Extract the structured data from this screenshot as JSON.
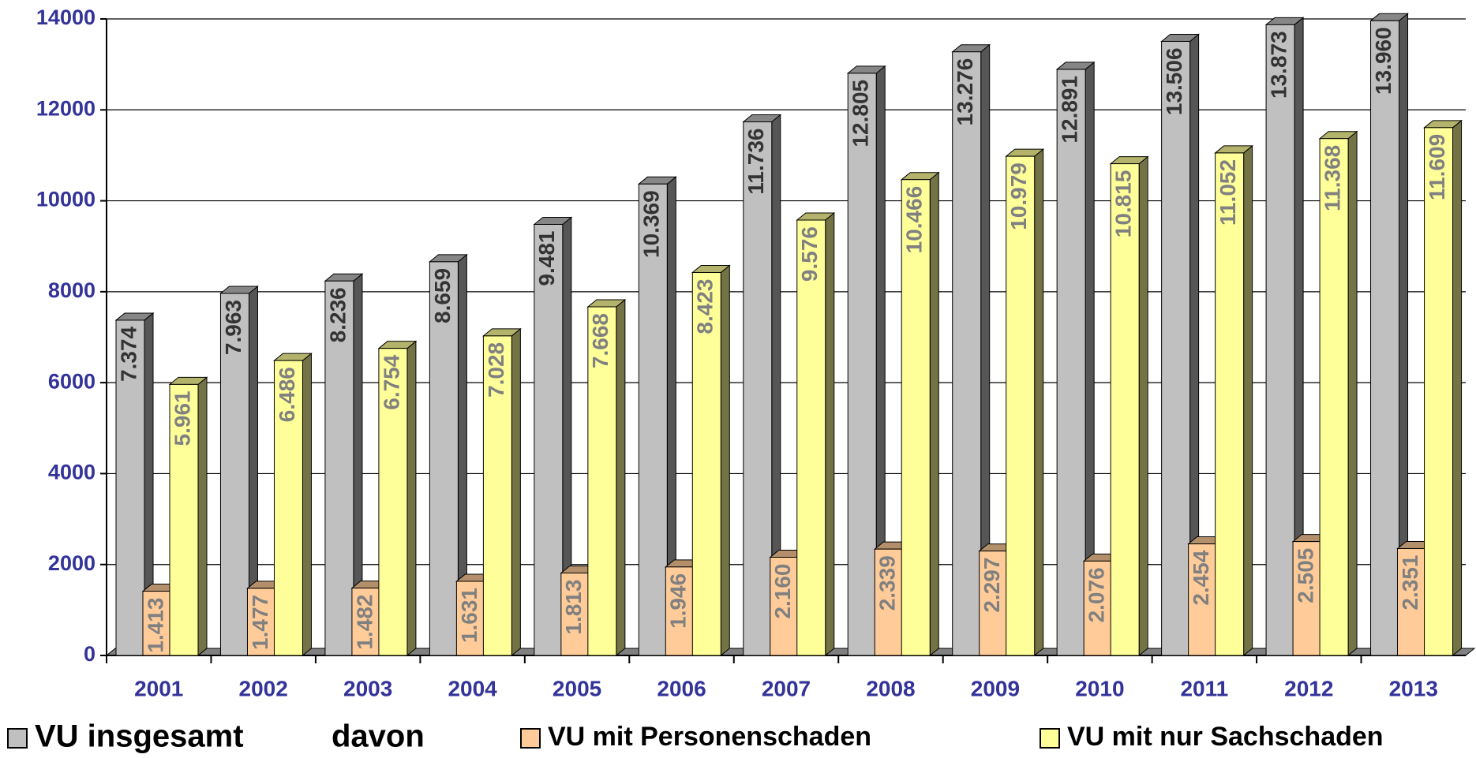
{
  "chart_data": {
    "type": "bar",
    "categories": [
      "2001",
      "2002",
      "2003",
      "2004",
      "2005",
      "2006",
      "2007",
      "2008",
      "2009",
      "2010",
      "2011",
      "2012",
      "2013"
    ],
    "series": [
      {
        "name": "VU insgesamt",
        "color": "#c0c0c0",
        "values": [
          7374,
          7963,
          8236,
          8659,
          9481,
          10369,
          11736,
          12805,
          13276,
          12891,
          13506,
          13873,
          13960
        ],
        "value_labels": [
          "7.374",
          "7.963",
          "8.236",
          "8.659",
          "9.481",
          "10.369",
          "11.736",
          "12.805",
          "13.276",
          "12.891",
          "13.506",
          "13.873",
          "13.960"
        ]
      },
      {
        "name": "VU mit Personenschaden",
        "color": "#ffcc99",
        "values": [
          1413,
          1477,
          1482,
          1631,
          1813,
          1946,
          2160,
          2339,
          2297,
          2076,
          2454,
          2505,
          2351
        ],
        "value_labels": [
          "1.413",
          "1.477",
          "1.482",
          "1.631",
          "1.813",
          "1.946",
          "2.160",
          "2.339",
          "2.297",
          "2.076",
          "2.454",
          "2.505",
          "2.351"
        ]
      },
      {
        "name": "VU mit nur Sachschaden",
        "color": "#ffff99",
        "values": [
          5961,
          6486,
          6754,
          7028,
          7668,
          8423,
          9576,
          10466,
          10979,
          10815,
          11052,
          11368,
          11609
        ],
        "value_labels": [
          "5.961",
          "6.486",
          "6.754",
          "7.028",
          "7.668",
          "8.423",
          "9.576",
          "10.466",
          "10.979",
          "10.815",
          "11.052",
          "11.368",
          "11.609"
        ]
      }
    ],
    "legend_note": "davon",
    "ylim": [
      0,
      14000
    ],
    "yticks": [
      0,
      2000,
      4000,
      6000,
      8000,
      10000,
      12000,
      14000
    ],
    "grid": true
  }
}
